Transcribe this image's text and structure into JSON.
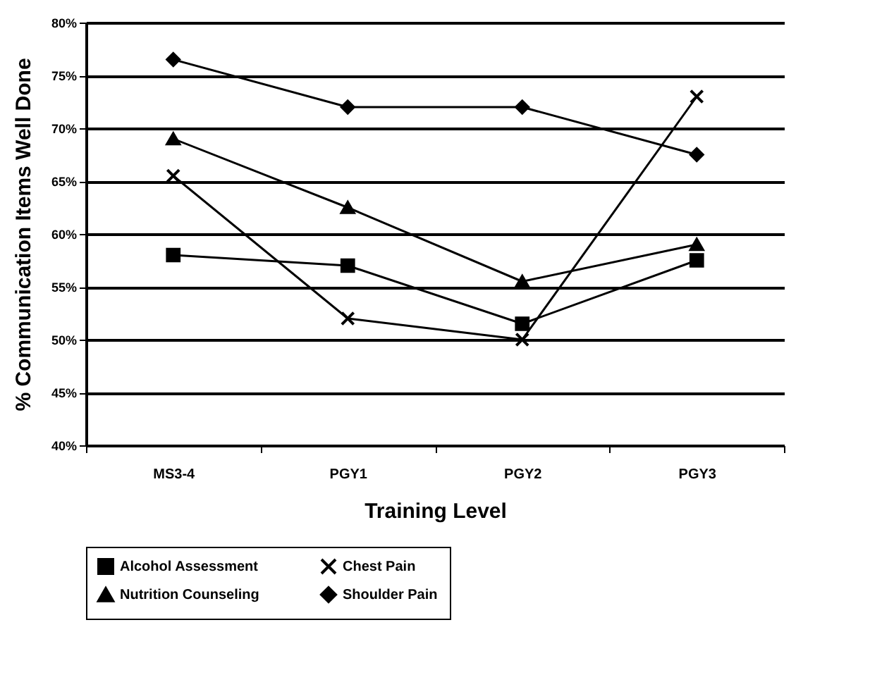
{
  "chart_data": {
    "type": "line",
    "xlabel": "Training Level",
    "ylabel": "% Communication Items Well Done",
    "categories": [
      "MS3-4",
      "PGY1",
      "PGY2",
      "PGY3"
    ],
    "series": [
      {
        "name": "Alcohol Assessment",
        "color": "#000000",
        "marker": "square",
        "values": [
          58,
          57,
          51.5,
          57.5
        ]
      },
      {
        "name": "Chest Pain",
        "color": "#000000",
        "marker": "cross",
        "values": [
          65.5,
          52,
          50,
          73
        ]
      },
      {
        "name": "Nutrition Counseling",
        "color": "#000000",
        "marker": "triangle",
        "values": [
          69,
          62.5,
          55.5,
          59
        ]
      },
      {
        "name": "Shoulder Pain",
        "color": "#000000",
        "marker": "diamond",
        "values": [
          76.5,
          72,
          72,
          67.5
        ]
      }
    ],
    "ylim": [
      40,
      80
    ],
    "yticks": [
      {
        "value": 40,
        "label": "40%"
      },
      {
        "value": 45,
        "label": "45%"
      },
      {
        "value": 50,
        "label": "50%"
      },
      {
        "value": 55,
        "label": "55%"
      },
      {
        "value": 60,
        "label": "60%"
      },
      {
        "value": 65,
        "label": "65%"
      },
      {
        "value": 70,
        "label": "70%"
      },
      {
        "value": 75,
        "label": "75%"
      },
      {
        "value": 80,
        "label": "80%"
      }
    ],
    "grid": "y",
    "legend": "bottom",
    "line_style": "solid"
  }
}
